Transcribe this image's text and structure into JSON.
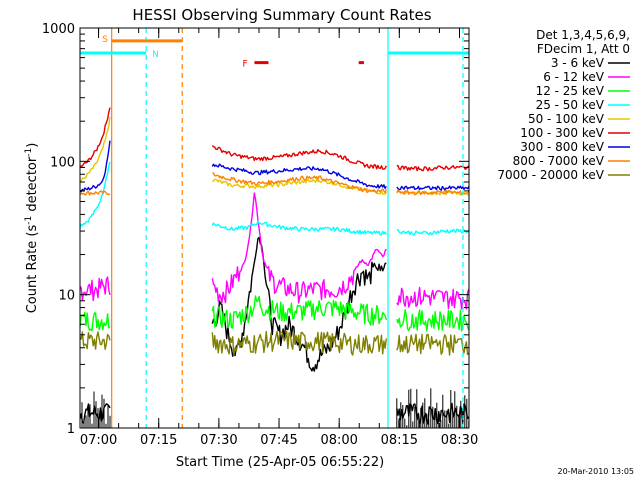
{
  "chart_data": {
    "type": "line",
    "title": "HESSI Observing Summary Count Rates",
    "xlabel": "Start Time (25-Apr-05 06:55:22)",
    "ylabel_main": "Count Rate (s",
    "ylabel_sup1": "-1",
    "ylabel_mid": " detector",
    "ylabel_sup2": "-1",
    "ylabel_end": ")",
    "footer": "20-Mar-2010 13:05",
    "yscale": "log",
    "ylim": [
      1,
      1000
    ],
    "xlim_minutes": [
      0,
      97
    ],
    "x_tick_labels": [
      "07:00",
      "07:15",
      "07:30",
      "07:45",
      "08:00",
      "08:15",
      "08:30"
    ],
    "x_tick_minutes": [
      4.63,
      19.63,
      34.63,
      49.63,
      64.63,
      79.63,
      94.63
    ],
    "y_tick_labels": [
      "1",
      "10",
      "100",
      "1000"
    ],
    "y_tick_values": [
      1,
      10,
      100,
      1000
    ],
    "legend": {
      "header1": "Det 1,3,4,5,6,9,",
      "header2": "FDecim 1, Att 0",
      "entries": [
        {
          "label": "3 - 6 keV",
          "color": "#000000"
        },
        {
          "label": "6 - 12 keV",
          "color": "#ff00ff"
        },
        {
          "label": "12 - 25 keV",
          "color": "#00ff00"
        },
        {
          "label": "25 - 50 keV",
          "color": "#00ffff"
        },
        {
          "label": "50 - 100 keV",
          "color": "#e6c800"
        },
        {
          "label": "100 - 300 keV",
          "color": "#e60000"
        },
        {
          "label": "300 - 800 keV",
          "color": "#0000e6"
        },
        {
          "label": "800 - 7000 keV",
          "color": "#ff8000"
        },
        {
          "label": "7000 - 20000 keV",
          "color": "#808000"
        }
      ]
    },
    "annotations": {
      "s_label": "S",
      "n_label": "N",
      "f_label": "F"
    },
    "segments": [
      {
        "name": "3 - 6 keV",
        "color": "#000000",
        "t": [
          0,
          2,
          4,
          5.5,
          7.5
        ],
        "y": [
          1.3,
          1.3,
          1.3,
          1.3,
          1.3
        ]
      },
      {
        "name": "6 - 12 keV",
        "color": "#ff00ff",
        "t": [
          0,
          2,
          4,
          5.5,
          7.5
        ],
        "y": [
          11,
          11,
          11,
          11.5,
          12
        ]
      },
      {
        "name": "12 - 25 keV",
        "color": "#00ff00",
        "t": [
          0,
          2,
          4,
          5.5,
          7.5
        ],
        "y": [
          6.5,
          6.5,
          6.5,
          6.5,
          6.5
        ]
      },
      {
        "name": "25 - 50 keV",
        "color": "#00ffff",
        "t": [
          0,
          2,
          4,
          5.5,
          6.5,
          7.5
        ],
        "y": [
          33,
          36,
          43,
          55,
          75,
          100
        ]
      },
      {
        "name": "50 - 100 keV",
        "color": "#e6c800",
        "t": [
          0,
          2,
          4,
          5.5,
          6.5,
          7.5
        ],
        "y": [
          70,
          80,
          95,
          120,
          150,
          210
        ]
      },
      {
        "name": "100 - 300 keV",
        "color": "#e60000",
        "t": [
          0,
          2,
          4,
          5.5,
          6.5,
          7.5
        ],
        "y": [
          90,
          100,
          120,
          150,
          190,
          260
        ]
      },
      {
        "name": "300 - 800 keV",
        "color": "#0000e6",
        "t": [
          0,
          2,
          4,
          5.5,
          6.5,
          7.5
        ],
        "y": [
          60,
          62,
          65,
          70,
          90,
          140
        ]
      },
      {
        "name": "800 - 7000 keV",
        "color": "#ff8000",
        "t": [
          0,
          7.5
        ],
        "y": [
          58,
          58
        ]
      },
      {
        "name": "7000 - 20000 keV",
        "color": "#808000",
        "t": [
          0,
          7.5
        ],
        "y": [
          4.5,
          4.5
        ]
      },
      {
        "name": "3 - 6 keV",
        "color": "#000000",
        "t": [
          33,
          35,
          37,
          39,
          41,
          43,
          44.5,
          45.5,
          46.5,
          48,
          50,
          52,
          54,
          56,
          58,
          60,
          62,
          64,
          66,
          67.5,
          69,
          70.5,
          72,
          73.5,
          75,
          76.5
        ],
        "y": [
          6,
          8,
          5,
          3.5,
          6,
          14,
          28,
          22,
          12,
          6,
          5,
          6,
          5,
          4,
          3,
          3.5,
          4,
          5,
          7,
          10,
          13,
          15,
          13,
          17,
          14,
          18
        ]
      },
      {
        "name": "6 - 12 keV",
        "color": "#ff00ff",
        "t": [
          33,
          35,
          37,
          39,
          41,
          42.5,
          43.5,
          44.5,
          45.5,
          47,
          49,
          52,
          55,
          58,
          61,
          64,
          66,
          68,
          70,
          72,
          74,
          75.5,
          76.5
        ],
        "y": [
          12,
          10,
          11,
          14,
          17,
          30,
          60,
          35,
          20,
          14,
          12,
          11,
          10.5,
          11,
          11,
          11,
          12,
          14,
          18,
          17,
          22,
          19,
          22
        ]
      },
      {
        "name": "12 - 25 keV",
        "color": "#00ff00",
        "t": [
          33,
          38,
          42,
          44.5,
          46,
          50,
          55,
          60,
          64,
          68,
          72,
          76.5
        ],
        "y": [
          7,
          6.5,
          7.5,
          9,
          8,
          7.5,
          7.5,
          8,
          8,
          7.5,
          7.2,
          7
        ]
      },
      {
        "name": "25 - 50 keV",
        "color": "#00ffff",
        "t": [
          33,
          38,
          42,
          44.5,
          46,
          50,
          55,
          60,
          64,
          68,
          72,
          76.5
        ],
        "y": [
          34,
          31,
          32,
          35,
          34,
          32,
          31,
          31,
          31,
          30,
          29,
          29
        ]
      },
      {
        "name": "50 - 100 keV",
        "color": "#e6c800",
        "t": [
          33,
          38,
          44,
          50,
          55,
          60,
          64,
          68,
          72,
          76.5
        ],
        "y": [
          73,
          66,
          65,
          67,
          70,
          72,
          68,
          63,
          60,
          58
        ]
      },
      {
        "name": "100 - 300 keV",
        "color": "#e60000",
        "t": [
          33,
          38,
          44,
          50,
          55,
          60,
          64,
          68,
          72,
          76.5
        ],
        "y": [
          130,
          112,
          104,
          108,
          115,
          120,
          112,
          100,
          92,
          90
        ]
      },
      {
        "name": "300 - 800 keV",
        "color": "#0000e6",
        "t": [
          33,
          38,
          44,
          50,
          55,
          60,
          64,
          68,
          72,
          76.5
        ],
        "y": [
          95,
          88,
          82,
          85,
          88,
          88,
          80,
          72,
          66,
          64
        ]
      },
      {
        "name": "800 - 7000 keV",
        "color": "#ff8000",
        "t": [
          33,
          38,
          44,
          50,
          55,
          60,
          64,
          68,
          72,
          76.5
        ],
        "y": [
          80,
          73,
          68,
          71,
          75,
          75,
          69,
          64,
          60,
          60
        ]
      },
      {
        "name": "7000 - 20000 keV",
        "color": "#808000",
        "t": [
          33,
          38,
          44,
          50,
          55,
          60,
          64,
          68,
          72,
          76.5
        ],
        "y": [
          4.5,
          4.2,
          4.4,
          4.6,
          4.5,
          4.5,
          4.4,
          4.3,
          4.3,
          4.3
        ]
      },
      {
        "name": "3 - 6 keV",
        "color": "#000000",
        "t": [
          79,
          83,
          87,
          91,
          95,
          97
        ],
        "y": [
          1.3,
          1.3,
          1.3,
          1.3,
          1.3,
          1.3
        ]
      },
      {
        "name": "6 - 12 keV",
        "color": "#ff00ff",
        "t": [
          79,
          83,
          87,
          91,
          95,
          97
        ],
        "y": [
          10,
          9.7,
          9.7,
          9.5,
          9.5,
          9.5
        ]
      },
      {
        "name": "12 - 25 keV",
        "color": "#00ff00",
        "t": [
          79,
          83,
          87,
          91,
          95,
          97
        ],
        "y": [
          6.8,
          6.5,
          6.5,
          6.5,
          6.5,
          6.5
        ]
      },
      {
        "name": "25 - 50 keV",
        "color": "#00ffff",
        "t": [
          79,
          83,
          87,
          91,
          95,
          97
        ],
        "y": [
          30,
          29,
          29,
          30,
          30,
          30
        ]
      },
      {
        "name": "50 - 100 keV",
        "color": "#e6c800",
        "t": [
          79,
          83,
          87,
          91,
          95,
          97
        ],
        "y": [
          58,
          58,
          58,
          58,
          58,
          58
        ]
      },
      {
        "name": "100 - 300 keV",
        "color": "#e60000",
        "t": [
          79,
          83,
          87,
          91,
          95,
          97
        ],
        "y": [
          90,
          88,
          88,
          90,
          90,
          90
        ]
      },
      {
        "name": "300 - 800 keV",
        "color": "#0000e6",
        "t": [
          79,
          83,
          87,
          91,
          95,
          97
        ],
        "y": [
          64,
          63,
          63,
          63,
          63,
          63
        ]
      },
      {
        "name": "800 - 7000 keV",
        "color": "#ff8000",
        "t": [
          79,
          83,
          87,
          91,
          95,
          97
        ],
        "y": [
          59,
          58,
          58,
          59,
          58,
          58
        ]
      },
      {
        "name": "7000 - 20000 keV",
        "color": "#808000",
        "t": [
          79,
          83,
          87,
          91,
          95,
          97
        ],
        "y": [
          4.3,
          4.3,
          4.3,
          4.3,
          4.3,
          4.3
        ]
      }
    ],
    "noise_bands": [
      {
        "color": "#000000",
        "t": [
          0,
          7.5
        ],
        "ylo": 1,
        "yhi": 2
      },
      {
        "color": "#000000",
        "t": [
          79,
          97
        ],
        "ylo": 1,
        "yhi": 2
      }
    ],
    "vertical_lines": [
      {
        "t": 7.9,
        "color": "#ff8000",
        "style": "solid"
      },
      {
        "t": 16.5,
        "color": "#00ffff",
        "style": "dashed"
      },
      {
        "t": 25.5,
        "color": "#ff8000",
        "style": "dashed"
      },
      {
        "t": 76.8,
        "color": "#00ffff",
        "style": "solid"
      },
      {
        "t": 95.5,
        "color": "#00ffff",
        "style": "dashed"
      }
    ],
    "saa_bar": {
      "t": [
        8,
        25.5
      ],
      "y": 800,
      "color": "#ff8000"
    },
    "night_bars": [
      {
        "t": [
          0,
          16.5
        ],
        "y": 650,
        "color": "#00ffff"
      },
      {
        "t": [
          76.8,
          97
        ],
        "y": 650,
        "color": "#00ffff"
      }
    ],
    "flare_bars": [
      {
        "t": [
          43.5,
          47
        ],
        "y": 550,
        "color": "#e60000"
      },
      {
        "t": [
          69.5,
          70.8
        ],
        "y": 550,
        "color": "#e60000"
      }
    ]
  }
}
